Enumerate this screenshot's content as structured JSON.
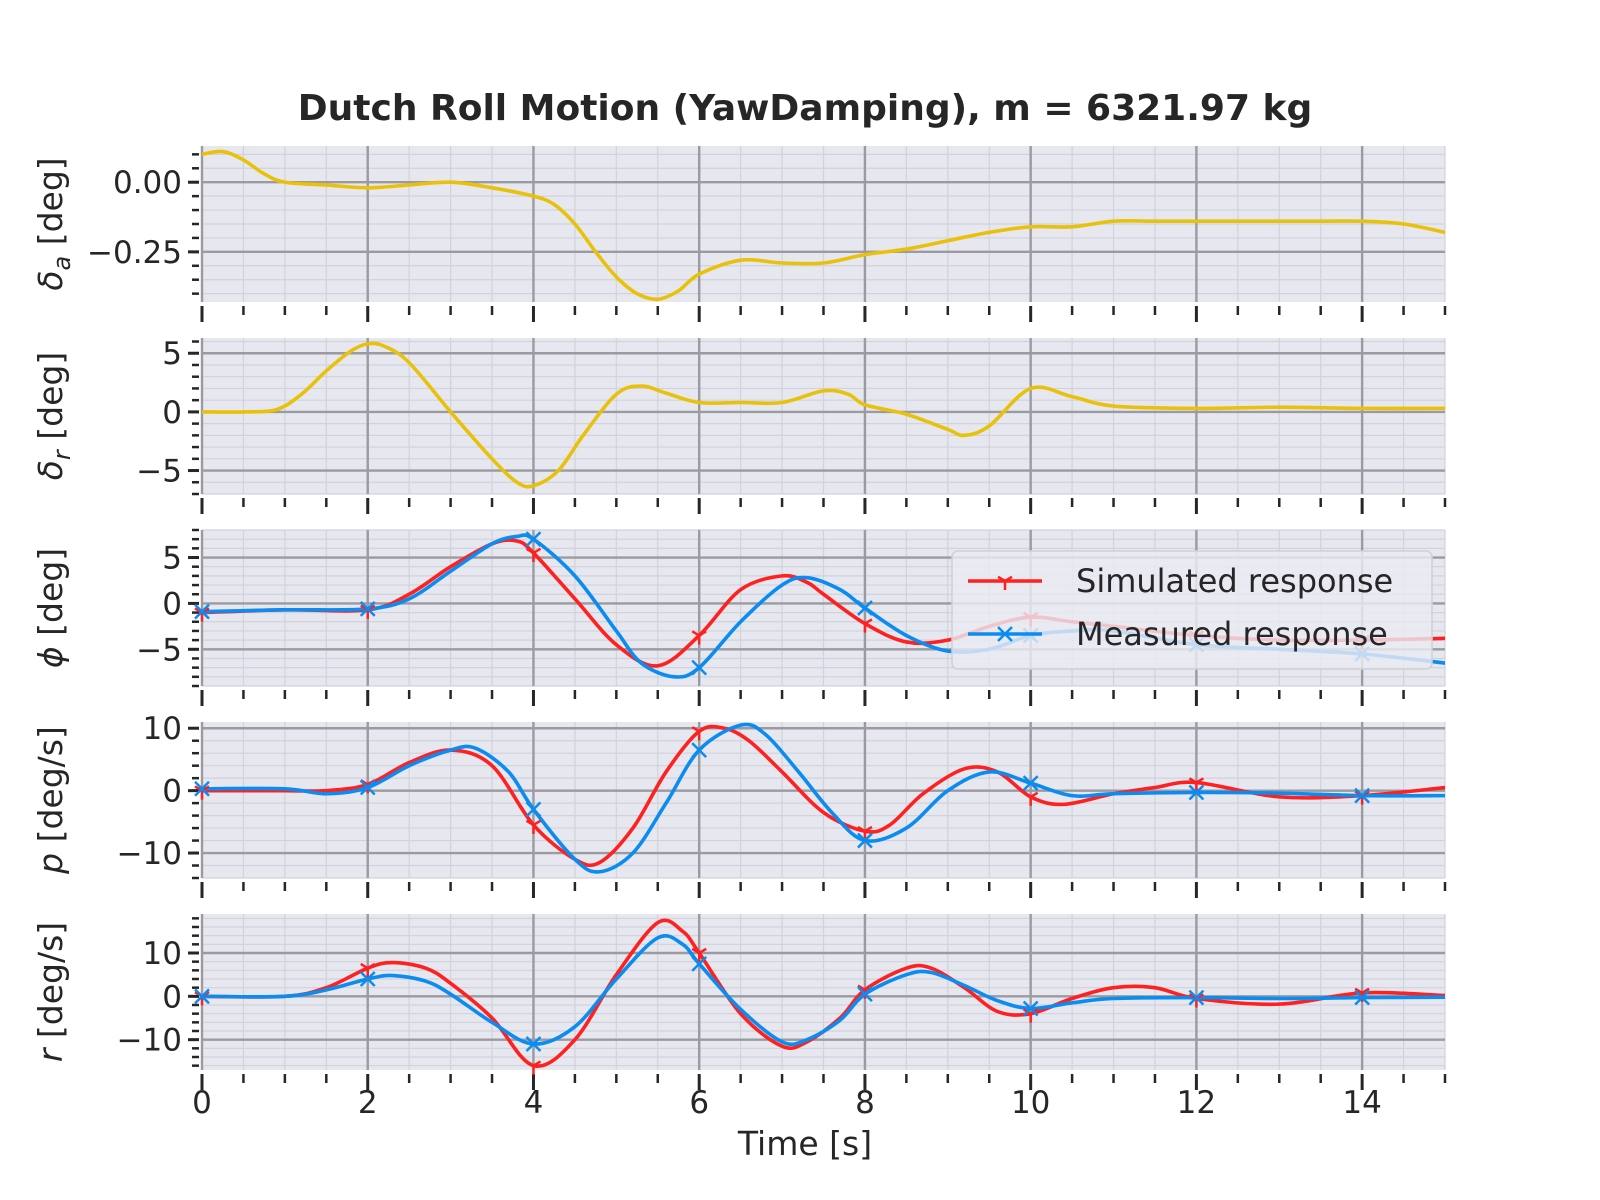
{
  "chart_data": {
    "type": "line",
    "title": "Dutch Roll Motion (YawDamping), m = 6321.97 kg",
    "xlabel": "Time [s]",
    "xlim": [
      0,
      15
    ],
    "xticks": [
      0,
      2,
      4,
      6,
      8,
      10,
      12,
      14
    ],
    "xtick_labels": [
      "0",
      "2",
      "4",
      "6",
      "8",
      "10",
      "12",
      "14"
    ],
    "grid": true,
    "legend": {
      "placement": "right, third panel",
      "entries": [
        {
          "label": "Simulated response",
          "color": "#ff2020",
          "marker": "1"
        },
        {
          "label": "Measured response",
          "color": "#0a8cf0",
          "marker": "x"
        }
      ]
    },
    "panels": [
      {
        "ylabel_symbol": "δ",
        "ylabel_subscript": "a",
        "ylabel_unit": " [deg]",
        "ylim": [
          -0.43,
          0.13
        ],
        "yticks": [
          0.0,
          -0.25
        ],
        "ytick_labels": [
          "0.00",
          "−0.25"
        ],
        "series": [
          {
            "color": "#e8c20a",
            "markers": false,
            "x": [
              0,
              0.25,
              0.5,
              0.75,
              1,
              1.5,
              2,
              2.5,
              3,
              3.5,
              4,
              4.25,
              4.5,
              4.75,
              5,
              5.25,
              5.5,
              5.75,
              6,
              6.5,
              7,
              7.5,
              8,
              8.5,
              9,
              9.5,
              10,
              10.5,
              11,
              11.5,
              12,
              12.5,
              13,
              13.5,
              14,
              14.5,
              15
            ],
            "y": [
              0.1,
              0.11,
              0.08,
              0.03,
              0.0,
              -0.01,
              -0.02,
              -0.01,
              0.0,
              -0.02,
              -0.05,
              -0.08,
              -0.15,
              -0.25,
              -0.34,
              -0.4,
              -0.42,
              -0.39,
              -0.33,
              -0.28,
              -0.29,
              -0.29,
              -0.26,
              -0.24,
              -0.21,
              -0.18,
              -0.16,
              -0.16,
              -0.14,
              -0.14,
              -0.14,
              -0.14,
              -0.14,
              -0.14,
              -0.14,
              -0.15,
              -0.18
            ]
          }
        ]
      },
      {
        "ylabel_symbol": "δ",
        "ylabel_subscript": "r",
        "ylabel_unit": " [deg]",
        "ylim": [
          -7,
          6.3
        ],
        "yticks": [
          5,
          0,
          -5
        ],
        "ytick_labels": [
          "5",
          "0",
          "−5"
        ],
        "series": [
          {
            "color": "#e8c20a",
            "markers": false,
            "x": [
              0,
              0.5,
              0.9,
              1.2,
              1.5,
              1.8,
              2.0,
              2.2,
              2.5,
              3.0,
              3.5,
              3.8,
              4.0,
              4.3,
              4.6,
              5.0,
              5.3,
              5.6,
              6.0,
              6.5,
              7.0,
              7.5,
              7.8,
              8.0,
              8.5,
              9.0,
              9.2,
              9.5,
              10.0,
              10.5,
              11.0,
              12.0,
              13.0,
              14.0,
              15.0
            ],
            "y": [
              0,
              0,
              0.2,
              1.5,
              3.5,
              5.2,
              5.8,
              5.6,
              4.2,
              0,
              -4.0,
              -6.0,
              -6.3,
              -5.0,
              -2.0,
              1.5,
              2.2,
              1.6,
              0.8,
              0.8,
              0.8,
              1.8,
              1.5,
              0.6,
              -0.2,
              -1.5,
              -2.0,
              -1.2,
              2.0,
              1.3,
              0.5,
              0.3,
              0.4,
              0.3,
              0.3
            ]
          }
        ]
      },
      {
        "ylabel_symbol": "ϕ",
        "ylabel_subscript": "",
        "ylabel_unit": " [deg]",
        "ylim": [
          -9,
          8
        ],
        "yticks": [
          5,
          0,
          -5
        ],
        "ytick_labels": [
          "5",
          "0",
          "−5"
        ],
        "series": [
          {
            "name": "Simulated response",
            "color": "#ff2020",
            "markers": true,
            "marker": "1",
            "x": [
              0,
              1,
              2,
              2.5,
              3,
              3.5,
              3.8,
              4,
              4.5,
              5,
              5.5,
              6,
              6.5,
              7,
              7.3,
              7.5,
              8,
              8.5,
              9,
              9.5,
              10,
              10.5,
              11,
              12,
              13,
              14,
              15
            ],
            "y": [
              -1,
              -0.7,
              -0.7,
              1.0,
              4.0,
              6.5,
              6.8,
              5.5,
              0.5,
              -4.5,
              -6.8,
              -3.5,
              1.5,
              3.0,
              2.3,
              1.0,
              -2.2,
              -4.2,
              -4.0,
              -2.5,
              -1.5,
              -2.0,
              -2.5,
              -3.5,
              -4.0,
              -4.0,
              -3.8
            ]
          },
          {
            "name": "Measured response",
            "color": "#0a8cf0",
            "markers": true,
            "marker": "x",
            "x": [
              0,
              1,
              2,
              2.5,
              3,
              3.5,
              3.8,
              4,
              4.5,
              5,
              5.3,
              5.7,
              6,
              6.5,
              7,
              7.3,
              7.7,
              8,
              8.5,
              9,
              9.5,
              10,
              10.5,
              11,
              12,
              13,
              14,
              15
            ],
            "y": [
              -0.9,
              -0.7,
              -0.6,
              0.5,
              3.5,
              6.5,
              7.3,
              7.0,
              3.0,
              -3.0,
              -6.5,
              -8.0,
              -7.0,
              -2.0,
              2.0,
              2.8,
              1.5,
              -0.5,
              -3.5,
              -5.2,
              -5.0,
              -3.5,
              -3.0,
              -3.0,
              -4.5,
              -5.0,
              -5.5,
              -6.5
            ]
          }
        ]
      },
      {
        "ylabel_symbol": "p",
        "ylabel_subscript": "",
        "ylabel_unit": " [deg/s]",
        "ylim": [
          -14,
          11
        ],
        "yticks": [
          10,
          0,
          -10
        ],
        "ytick_labels": [
          "10",
          "0",
          "−10"
        ],
        "series": [
          {
            "name": "Simulated response",
            "color": "#ff2020",
            "markers": true,
            "marker": "1",
            "x": [
              0,
              1,
              1.5,
              2,
              2.5,
              3,
              3.5,
              4,
              4.5,
              4.8,
              5.2,
              5.6,
              6,
              6.3,
              6.6,
              7,
              7.5,
              8,
              8.3,
              8.7,
              9.2,
              9.6,
              10,
              10.4,
              11,
              11.5,
              12,
              13,
              14,
              15
            ],
            "y": [
              0,
              0,
              0,
              1.0,
              4.5,
              6.5,
              4.0,
              -5.5,
              -11,
              -11.5,
              -6.0,
              3.0,
              9.5,
              10,
              8.0,
              3.0,
              -3.5,
              -6.5,
              -5.5,
              -0.5,
              3.5,
              3.0,
              -1.0,
              -2.2,
              -0.5,
              0.5,
              1.3,
              -1.0,
              -0.8,
              0.5
            ]
          },
          {
            "name": "Measured response",
            "color": "#0a8cf0",
            "markers": true,
            "marker": "x",
            "x": [
              0,
              1,
              1.5,
              2,
              2.5,
              3,
              3.3,
              3.7,
              4,
              4.5,
              4.8,
              5.2,
              5.6,
              6,
              6.5,
              6.8,
              7.2,
              7.6,
              8,
              8.5,
              9,
              9.5,
              10,
              10.5,
              11,
              12,
              13,
              14,
              15
            ],
            "y": [
              0.3,
              0.3,
              -0.5,
              0.5,
              4.0,
              6.5,
              6.8,
              3.0,
              -3.0,
              -11.0,
              -13.0,
              -10.0,
              -2.0,
              6.5,
              10.5,
              9.0,
              3.0,
              -3.5,
              -8.0,
              -6.0,
              0.0,
              3.0,
              1.2,
              -0.8,
              -0.5,
              -0.3,
              -0.4,
              -0.8,
              -0.8
            ]
          }
        ]
      },
      {
        "ylabel_symbol": "r",
        "ylabel_subscript": "",
        "ylabel_unit": " [deg/s]",
        "ylim": [
          -17,
          19
        ],
        "yticks": [
          10,
          0,
          -10
        ],
        "ytick_labels": [
          "10",
          "0",
          "−10"
        ],
        "series": [
          {
            "name": "Simulated response",
            "color": "#ff2020",
            "markers": true,
            "marker": "1",
            "x": [
              0,
              1,
              1.5,
              2,
              2.3,
              2.7,
              3,
              3.5,
              4,
              4.5,
              5,
              5.5,
              5.8,
              6,
              6.5,
              7,
              7.3,
              7.7,
              8,
              8.5,
              8.8,
              9.2,
              9.6,
              10,
              10.5,
              11,
              11.5,
              12,
              13,
              14,
              15
            ],
            "y": [
              0,
              0,
              2.0,
              6.5,
              7.8,
              6.5,
              3.0,
              -5.0,
              -16.0,
              -10.0,
              5.0,
              17.0,
              15.0,
              10.0,
              -4.0,
              -11.5,
              -10.5,
              -5.0,
              1.5,
              6.5,
              6.5,
              2.0,
              -3.5,
              -4.0,
              -0.5,
              2.0,
              2.0,
              -0.5,
              -1.8,
              0.8,
              0.2
            ]
          },
          {
            "name": "Measured response",
            "color": "#0a8cf0",
            "markers": true,
            "marker": "x",
            "x": [
              0,
              1,
              1.5,
              2,
              2.3,
              2.7,
              3,
              3.5,
              4,
              4.5,
              5,
              5.5,
              5.8,
              6,
              6.5,
              7,
              7.3,
              7.7,
              8,
              8.5,
              8.8,
              9.2,
              9.6,
              10,
              10.5,
              11,
              12,
              13,
              14,
              15
            ],
            "y": [
              0,
              0,
              1.5,
              4.0,
              4.8,
              3.5,
              0.5,
              -6.0,
              -11.0,
              -7.0,
              4.0,
              13.5,
              12.0,
              7.5,
              -3.0,
              -10.5,
              -10.0,
              -5.5,
              0.5,
              5.0,
              5.5,
              2.5,
              -1.0,
              -2.8,
              -1.5,
              -0.5,
              -0.3,
              -0.5,
              -0.3,
              -0.2
            ]
          }
        ]
      }
    ]
  }
}
